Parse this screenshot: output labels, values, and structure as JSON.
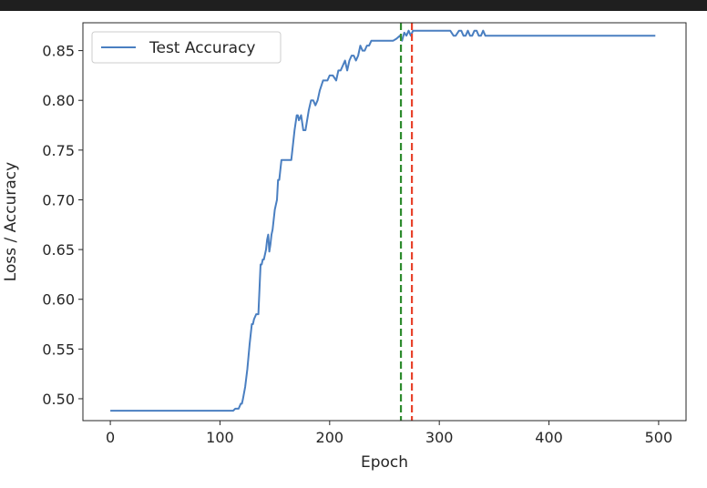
{
  "chart_data": {
    "type": "line",
    "xlabel": "Epoch",
    "ylabel": "Loss / Accuracy",
    "xlim": [
      -25,
      525
    ],
    "ylim": [
      0.478,
      0.878
    ],
    "xticks": [
      0,
      100,
      200,
      300,
      400,
      500
    ],
    "yticks": [
      0.5,
      0.55,
      0.6,
      0.65,
      0.7,
      0.75,
      0.8,
      0.85
    ],
    "ytick_labels": [
      "0.50",
      "0.55",
      "0.60",
      "0.65",
      "0.70",
      "0.75",
      "0.80",
      "0.85"
    ],
    "grid": false,
    "legend": {
      "position": "top-left",
      "entries": [
        "Test Accuracy"
      ]
    },
    "series": [
      {
        "name": "Test Accuracy",
        "color": "#4a7fc1",
        "x": [
          0,
          112,
          114,
          117,
          119,
          120,
          121,
          123,
          125,
          127,
          129,
          130,
          131,
          133,
          135,
          136,
          137,
          138,
          139,
          140,
          141,
          142,
          143,
          144,
          145,
          146,
          147,
          148,
          149,
          150,
          151,
          152,
          153,
          154,
          155,
          156,
          157,
          158,
          159,
          160,
          162,
          165,
          168,
          170,
          171,
          172,
          174,
          176,
          178,
          181,
          183,
          185,
          187,
          189,
          191,
          194,
          196,
          198,
          200,
          203,
          206,
          208,
          210,
          212,
          214,
          216,
          218,
          220,
          222,
          224,
          226,
          228,
          230,
          232,
          234,
          236,
          238,
          240,
          243,
          246,
          249,
          252,
          255,
          258,
          261,
          264,
          266,
          268,
          270,
          272,
          274,
          276,
          278,
          280,
          283,
          286,
          290,
          295,
          300,
          305,
          310,
          313,
          315,
          318,
          320,
          322,
          324,
          326,
          328,
          330,
          332,
          334,
          336,
          338,
          340,
          342,
          345,
          350,
          400,
          450,
          497
        ],
        "values": [
          0.488,
          0.488,
          0.49,
          0.49,
          0.495,
          0.495,
          0.5,
          0.512,
          0.53,
          0.555,
          0.575,
          0.575,
          0.58,
          0.585,
          0.585,
          0.61,
          0.635,
          0.635,
          0.64,
          0.64,
          0.645,
          0.65,
          0.66,
          0.665,
          0.648,
          0.655,
          0.665,
          0.67,
          0.68,
          0.69,
          0.695,
          0.7,
          0.72,
          0.72,
          0.73,
          0.74,
          0.74,
          0.74,
          0.74,
          0.74,
          0.74,
          0.74,
          0.77,
          0.785,
          0.785,
          0.78,
          0.785,
          0.77,
          0.77,
          0.79,
          0.8,
          0.8,
          0.795,
          0.8,
          0.81,
          0.82,
          0.82,
          0.82,
          0.825,
          0.825,
          0.82,
          0.83,
          0.83,
          0.835,
          0.84,
          0.83,
          0.84,
          0.845,
          0.845,
          0.84,
          0.845,
          0.855,
          0.85,
          0.85,
          0.855,
          0.855,
          0.86,
          0.86,
          0.86,
          0.86,
          0.86,
          0.86,
          0.86,
          0.86,
          0.862,
          0.865,
          0.86,
          0.868,
          0.865,
          0.87,
          0.865,
          0.87,
          0.87,
          0.87,
          0.87,
          0.87,
          0.87,
          0.87,
          0.87,
          0.87,
          0.87,
          0.865,
          0.865,
          0.87,
          0.87,
          0.865,
          0.865,
          0.87,
          0.865,
          0.865,
          0.87,
          0.87,
          0.865,
          0.865,
          0.87,
          0.865,
          0.865,
          0.865,
          0.865,
          0.865,
          0.865
        ]
      }
    ],
    "vlines": [
      {
        "x": 265,
        "color": "#2e8b2e",
        "style": "dashed"
      },
      {
        "x": 275,
        "color": "#e8432c",
        "style": "dashed"
      }
    ]
  }
}
